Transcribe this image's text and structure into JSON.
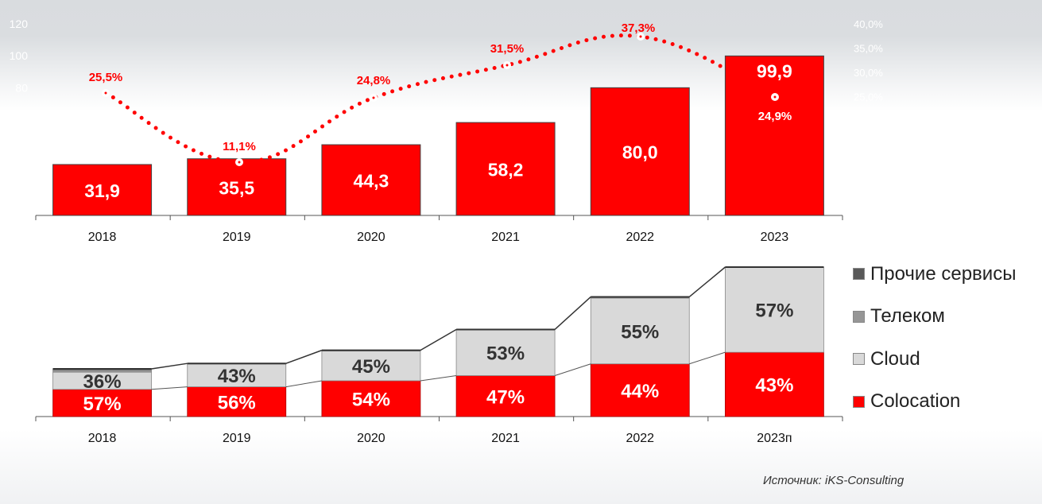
{
  "chart_data": [
    {
      "type": "bar",
      "title": "",
      "categories": [
        "2018",
        "2019",
        "2020",
        "2021",
        "2022",
        "2023"
      ],
      "values": [
        31.9,
        35.5,
        44.3,
        58.2,
        80.0,
        99.9
      ],
      "value_labels": [
        "31,9",
        "35,5",
        "44,3",
        "58,2",
        "80,0",
        "99,9"
      ],
      "ylim": [
        0,
        120
      ],
      "y_ticks": [
        "120",
        "100",
        "80"
      ],
      "secondary_series": {
        "type": "line",
        "style": "dotted-smooth",
        "name": "growth",
        "values": [
          25.5,
          11.1,
          24.8,
          31.5,
          37.3,
          24.9
        ],
        "labels": [
          "25,5%",
          "11,1%",
          "24,8%",
          "31,5%",
          "37,3%",
          "24,9%"
        ],
        "ylim": [
          0,
          40
        ],
        "y_ticks": [
          "40,0%",
          "35,0%",
          "30,0%",
          "25,0%"
        ]
      },
      "colors": {
        "bar": "#ff0000",
        "line": "#ff0000"
      },
      "grid": false,
      "legend": "none"
    },
    {
      "type": "bar",
      "stacked": true,
      "percent": true,
      "categories": [
        "2018",
        "2019",
        "2020",
        "2021",
        "2022",
        "2023п"
      ],
      "totals_relative": [
        31.9,
        35.5,
        44.3,
        58.2,
        80.0,
        99.9
      ],
      "series": [
        {
          "name": "Colocation",
          "values": [
            57,
            56,
            54,
            47,
            44,
            43
          ],
          "color": "#ff0000"
        },
        {
          "name": "Cloud",
          "values": [
            36,
            43,
            45,
            53,
            55,
            57
          ],
          "color": "#d9d9d9"
        },
        {
          "name": "Телеком",
          "values": [
            4,
            0.5,
            0.5,
            0,
            0.5,
            0
          ],
          "color": "#969696"
        },
        {
          "name": "Прочие сервисы",
          "values": [
            3,
            0.5,
            0.5,
            0,
            0.5,
            0
          ],
          "color": "#595959"
        }
      ],
      "legend": "right",
      "grid": false
    }
  ],
  "legend": {
    "items": [
      {
        "label": "Прочие сервисы",
        "color": "#595959"
      },
      {
        "label": "Телеком",
        "color": "#969696"
      },
      {
        "label": "Cloud",
        "color": "#d9d9d9"
      },
      {
        "label": "Colocation",
        "color": "#ff0000"
      }
    ]
  },
  "source": "Источник: iKS-Consulting"
}
